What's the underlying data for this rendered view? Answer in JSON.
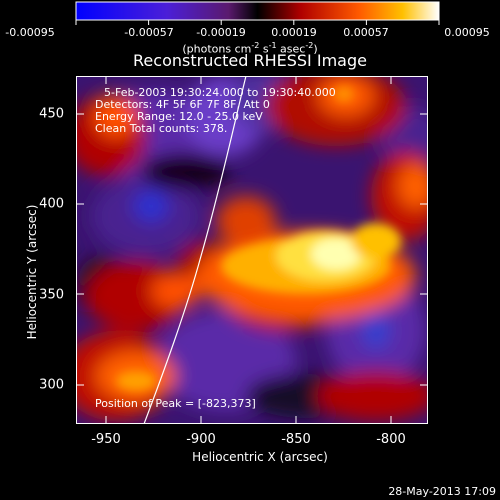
{
  "colorbar": {
    "tick_labels": [
      "-0.00095",
      "-0.00057",
      "-0.00019",
      "0.00019",
      "0.00057",
      "0.00095"
    ],
    "units_prefix": "(photons cm",
    "units_exp1": "-2",
    "units_mid1": " s",
    "units_exp2": "-1",
    "units_mid2": " asec",
    "units_exp3": "-2",
    "units_suffix": ")"
  },
  "title": "Reconstructed RHESSI Image",
  "annotations": {
    "time_range": "5-Feb-2003 19:30:24.000 to 19:30:40.000",
    "detectors": "Detectors: 4F 5F 6F 7F 8F, Att 0",
    "energy": "Energy Range: 12.0 - 25.0 keV",
    "method": "Clean    Total counts: 378.",
    "peak": "Position of Peak = [-823,373]"
  },
  "axes": {
    "xlabel": "Heliocentric X (arcsec)",
    "ylabel": "Heliocentric Y (arcsec)",
    "x_ticks": [
      "-950",
      "-900",
      "-850",
      "-800"
    ],
    "y_ticks": [
      "450",
      "400",
      "350",
      "300"
    ],
    "xlim": [
      -967,
      -783
    ],
    "ylim": [
      279,
      472
    ]
  },
  "footer_timestamp": "28-May-2013 17:09"
}
